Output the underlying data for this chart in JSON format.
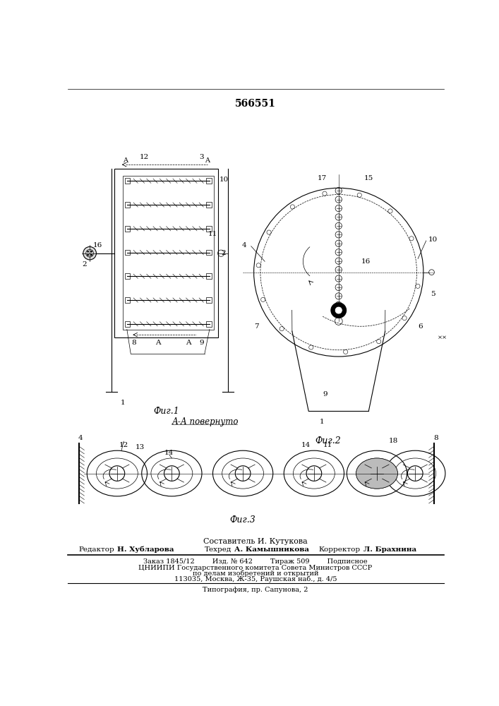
{
  "patent_number": "566551",
  "background_color": "#ffffff",
  "line_color": "#000000",
  "fig_width": 7.07,
  "fig_height": 10.0,
  "footer": {
    "composer_line": "Составитель И. Кутукова",
    "editor_label": "Редактор",
    "editor_name": "Н. Хубларова",
    "tecred_label": "Техред",
    "tecred_name": "А. Камышникова",
    "corrector_label": "Корректор",
    "corrector_name": "Л. Брахнина",
    "order_line": "Заказ 1845/12        Изд. № 642        Тираж 509        Подписное",
    "org_line1": "ЦНИИПИ Государственного комитета Совета Министров СССР",
    "org_line2": "по делам изобретений и открытий",
    "org_line3": "113035, Москва, Ж-35, Раушская наб., д. 4/5",
    "typo_line": "Типография, пр. Сапуновa, 2"
  },
  "fig1_caption": "Фиг.1",
  "fig2_caption": "Фиг.2",
  "fig3_caption": "Фиг.3",
  "section_label": "А-А повернуто"
}
